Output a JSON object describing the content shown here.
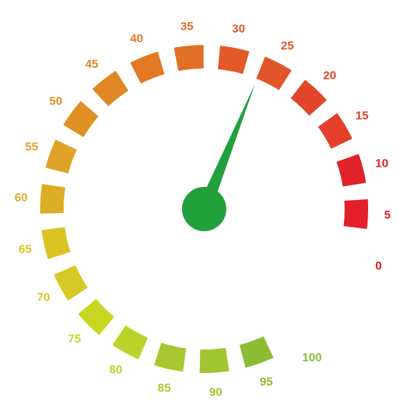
{
  "gauge": {
    "min": 0,
    "max": 100,
    "value": 26.5,
    "needle_color": "#22a03c",
    "ticks": [
      {
        "value": 0,
        "label": "0",
        "color": "#e3161f",
        "segment": false
      },
      {
        "value": 5,
        "label": "5",
        "color": "#e3202a",
        "segment": true
      },
      {
        "value": 10,
        "label": "10",
        "color": "#e12329",
        "segment": true
      },
      {
        "value": 15,
        "label": "15",
        "color": "#e2402a",
        "segment": true
      },
      {
        "value": 20,
        "label": "20",
        "color": "#e2462a",
        "segment": true
      },
      {
        "value": 25,
        "label": "25",
        "color": "#e2552a",
        "segment": true
      },
      {
        "value": 30,
        "label": "30",
        "color": "#e25b27",
        "segment": true
      },
      {
        "value": 35,
        "label": "35",
        "color": "#e26f26",
        "segment": true
      },
      {
        "value": 40,
        "label": "40",
        "color": "#e27a25",
        "segment": true
      },
      {
        "value": 45,
        "label": "45",
        "color": "#e18725",
        "segment": true
      },
      {
        "value": 50,
        "label": "50",
        "color": "#e19023",
        "segment": true
      },
      {
        "value": 55,
        "label": "55",
        "color": "#dfa327",
        "segment": true
      },
      {
        "value": 60,
        "label": "60",
        "color": "#dcad25",
        "segment": true
      },
      {
        "value": 65,
        "label": "65",
        "color": "#d9c424",
        "segment": true
      },
      {
        "value": 70,
        "label": "70",
        "color": "#d7c925",
        "segment": true
      },
      {
        "value": 75,
        "label": "75",
        "color": "#c8d622",
        "segment": true
      },
      {
        "value": 80,
        "label": "80",
        "color": "#bcd22a",
        "segment": true
      },
      {
        "value": 85,
        "label": "85",
        "color": "#a9c830",
        "segment": true
      },
      {
        "value": 90,
        "label": "90",
        "color": "#a2c632",
        "segment": true
      },
      {
        "value": 95,
        "label": "95",
        "color": "#8bbc34",
        "segment": true
      },
      {
        "value": 100,
        "label": "100",
        "color": "#8bbf3b",
        "segment": false
      }
    ]
  }
}
